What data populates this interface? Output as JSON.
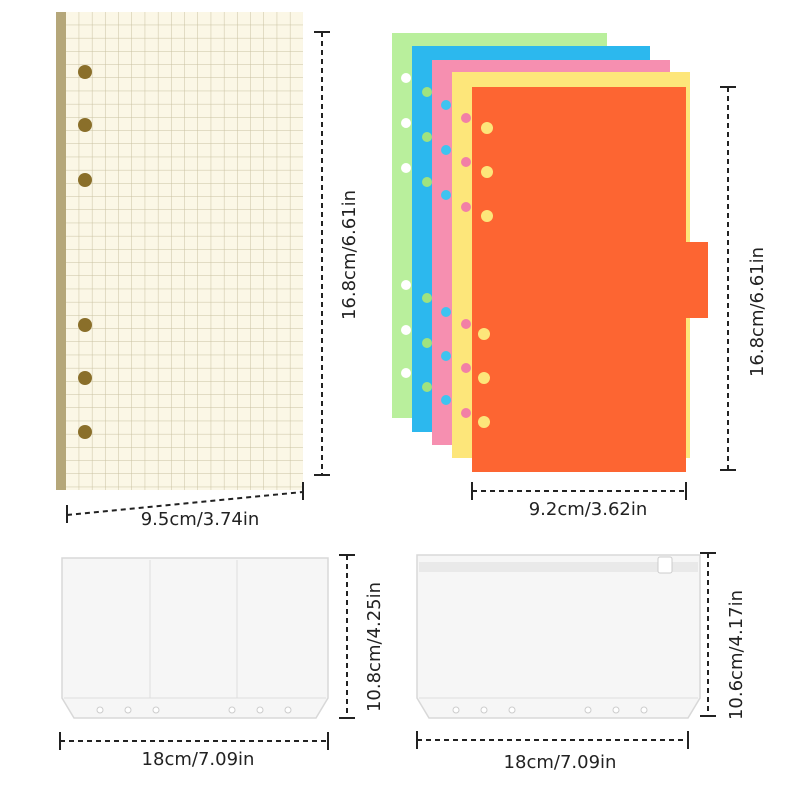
{
  "items": [
    {
      "height_label": "16.8cm/6.61in",
      "width_label": "9.5cm/3.74in"
    },
    {
      "height_label": "16.8cm/6.61in",
      "width_label": "9.2cm/3.62in"
    },
    {
      "height_label": "10.8cm/4.25in",
      "width_label": "18cm/7.09in"
    },
    {
      "height_label": "10.6cm/4.17in",
      "width_label": "18cm/7.09in"
    }
  ]
}
